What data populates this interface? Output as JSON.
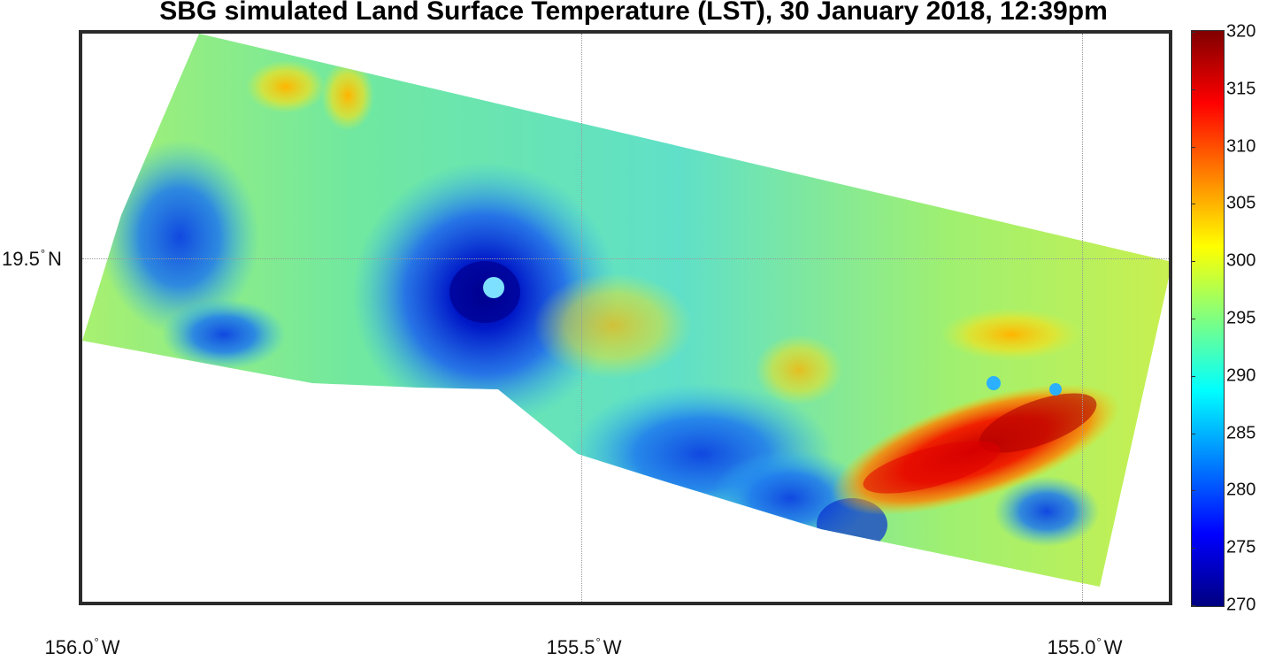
{
  "title": "SBG simulated Land Surface Temperature (LST), 30 January 2018, 12:39pm",
  "y_axis": {
    "label": "19.5",
    "deg": "°",
    "suffix": "N"
  },
  "x_axis": [
    {
      "label": "156.0",
      "deg": "°",
      "suffix": "W"
    },
    {
      "label": "155.5",
      "deg": "°",
      "suffix": "W"
    },
    {
      "label": "155.0",
      "deg": "°",
      "suffix": "W"
    }
  ],
  "colorbar": {
    "min": 270,
    "max": 320,
    "ticks": [
      "320",
      "315",
      "310",
      "305",
      "300",
      "295",
      "290",
      "285",
      "280",
      "275",
      "270"
    ],
    "colormap": "jet"
  },
  "colors": {
    "frame": "#2b2b2b",
    "grid": "#9a9a9a"
  }
}
